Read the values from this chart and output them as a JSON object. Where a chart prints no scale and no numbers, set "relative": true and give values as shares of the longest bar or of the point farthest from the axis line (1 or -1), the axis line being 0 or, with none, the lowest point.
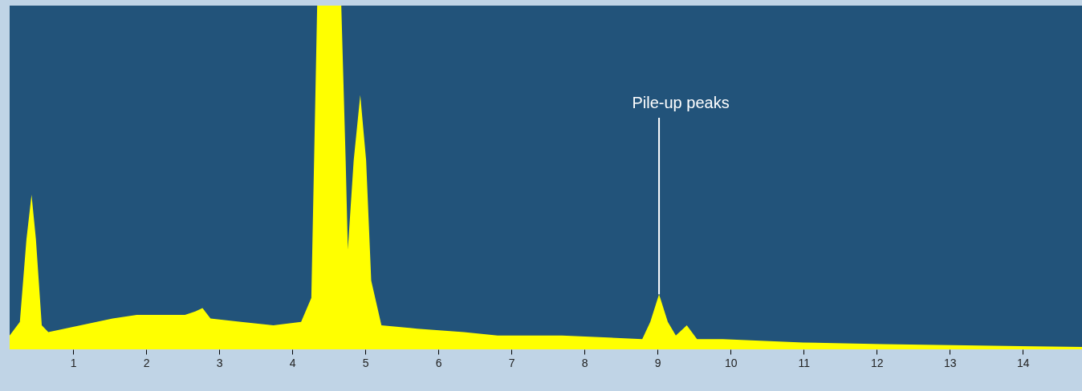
{
  "chart_data": {
    "type": "area",
    "relative": true,
    "tick_labels": "x",
    "grid": false,
    "xlim": [
      0.13,
      14.81
    ],
    "xticks": [
      1,
      2,
      3,
      4,
      5,
      6,
      7,
      8,
      9,
      10,
      11,
      12,
      13,
      14
    ],
    "series": [
      {
        "color": "#ffff00",
        "x": [
          0.13,
          0.27,
          0.36,
          0.43,
          0.49,
          0.57,
          0.66,
          1.1,
          1.54,
          1.87,
          2.53,
          2.67,
          2.77,
          2.88,
          3.3,
          3.74,
          4.12,
          4.26,
          4.34,
          4.67,
          4.73,
          4.76,
          4.84,
          4.93,
          5.01,
          5.08,
          5.22,
          5.71,
          6.35,
          6.81,
          7.69,
          8.79,
          8.9,
          9.02,
          9.14,
          9.25,
          9.4,
          9.54,
          9.89,
          10.99,
          12.09,
          14.81
        ],
        "values": [
          0.04,
          0.08,
          0.32,
          0.45,
          0.32,
          0.07,
          0.05,
          0.07,
          0.09,
          0.1,
          0.1,
          0.11,
          0.12,
          0.09,
          0.08,
          0.07,
          0.08,
          0.15,
          1.0,
          1.0,
          0.55,
          0.29,
          0.55,
          0.74,
          0.55,
          0.2,
          0.07,
          0.06,
          0.05,
          0.04,
          0.04,
          0.03,
          0.08,
          0.16,
          0.08,
          0.04,
          0.07,
          0.03,
          0.03,
          0.02,
          0.015,
          0.007
        ]
      }
    ],
    "annotations": [
      {
        "text": "Pile-up peaks",
        "x": 9.02,
        "y": 0.16
      }
    ]
  }
}
